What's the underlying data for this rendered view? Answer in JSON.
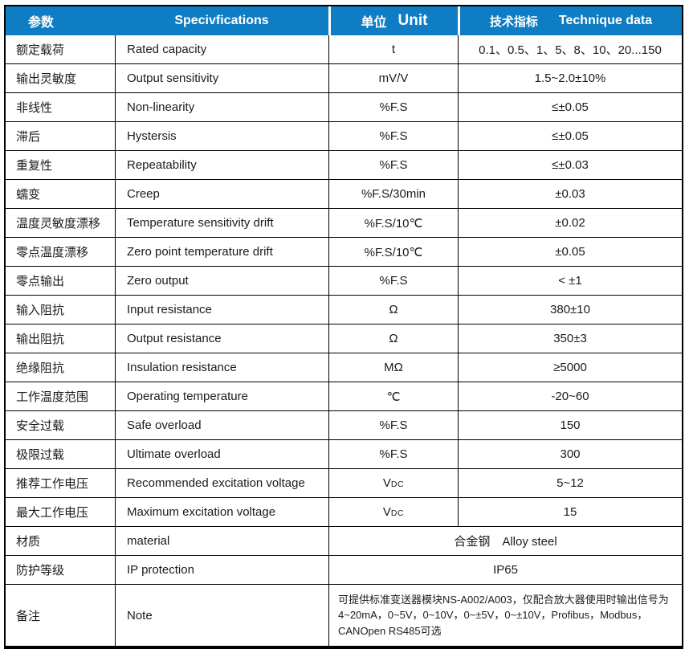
{
  "colors": {
    "header_bg": "#0E7DC4",
    "header_text": "#FFFFFF",
    "border": "#000000",
    "body_text": "#1B1B1B"
  },
  "header": {
    "param_cn": "参数",
    "spec_en": "Specivfications",
    "unit_cn": "单位",
    "unit_en": "Unit",
    "data_cn": "技术指标",
    "data_en": "Technique data"
  },
  "rows": [
    {
      "cn": "额定载荷",
      "en": "Rated capacity",
      "unit": "t",
      "value": "0.1、0.5、1、5、8、10、20...150"
    },
    {
      "cn": "输出灵敏度",
      "en": "Output sensitivity",
      "unit": "mV/V",
      "value": "1.5~2.0±10%"
    },
    {
      "cn": "非线性",
      "en": "Non-linearity",
      "unit": "%F.S",
      "value": "≤±0.05"
    },
    {
      "cn": "滞后",
      "en": "Hystersis",
      "unit": "%F.S",
      "value": "≤±0.05"
    },
    {
      "cn": "重复性",
      "en": "Repeatability",
      "unit": "%F.S",
      "value": "≤±0.03"
    },
    {
      "cn": "蠕变",
      "en": "Creep",
      "unit": "%F.S/30min",
      "value": "±0.03"
    },
    {
      "cn": "温度灵敏度漂移",
      "en": "Temperature sensitivity drift",
      "unit": "%F.S/10℃",
      "value": "±0.02"
    },
    {
      "cn": "零点温度漂移",
      "en": "Zero point temperature drift",
      "unit": "%F.S/10℃",
      "value": "±0.05"
    },
    {
      "cn": "零点输出",
      "en": "Zero output",
      "unit": "%F.S",
      "value": "< ±1"
    },
    {
      "cn": "输入阻抗",
      "en": "Input resistance",
      "unit": "Ω",
      "value": "380±10"
    },
    {
      "cn": "输出阻抗",
      "en": "Output resistance",
      "unit": "Ω",
      "value": "350±3"
    },
    {
      "cn": "绝缘阻抗",
      "en": "Insulation resistance",
      "unit": "MΩ",
      "value": "≥5000"
    },
    {
      "cn": "工作温度范围",
      "en": "Operating temperature",
      "unit": "℃",
      "value": "-20~60"
    },
    {
      "cn": "安全过载",
      "en": "Safe overload",
      "unit": "%F.S",
      "value": "150"
    },
    {
      "cn": "极限过载",
      "en": "Ultimate overload",
      "unit": "%F.S",
      "value": "300"
    },
    {
      "cn": "推荐工作电压",
      "en": "Recommended excitation voltage",
      "unit": "V",
      "unit_sub": "DC",
      "value": "5~12"
    },
    {
      "cn": "最大工作电压",
      "en": "Maximum excitation voltage",
      "unit": "V",
      "unit_sub": "DC",
      "value": "15"
    }
  ],
  "material_row": {
    "cn": "材质",
    "en": "material",
    "value": "合金钢　Alloy steel"
  },
  "ip_row": {
    "cn": "防护等级",
    "en": "IP protection",
    "value": "IP65"
  },
  "note_row": {
    "cn": "备注",
    "en": "Note",
    "value": "可提供标准变送器模块NS-A002/A003，仅配合放大器使用时输出信号为4~20mA，0~5V，0~10V，0~±5V，0~±10V，Profibus，Modbus，CANOpen RS485可选"
  }
}
